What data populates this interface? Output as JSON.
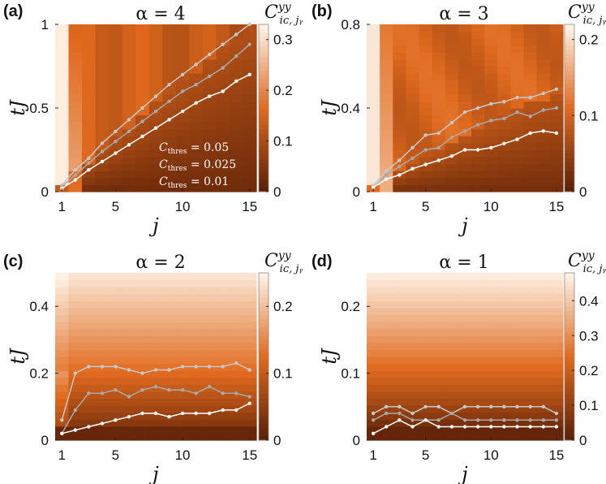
{
  "colors": {
    "low": "#5a1f06",
    "mid": "#e06a1e",
    "high": "#fff5ea",
    "line_light": "#c8c8c8",
    "line_mid": "#a8a8a8",
    "line_dark": "#ffffff"
  },
  "chart_data": [
    {
      "type": "heatmap",
      "panel_label": "(a)",
      "title": "α = 4",
      "xlabel": "j",
      "ylabel": "tJ",
      "colorbar_label": "C^{yy}_{i_c, j_y}",
      "xlim": [
        1,
        15
      ],
      "ylim": [
        0,
        1
      ],
      "xticks": [
        1,
        5,
        10,
        15
      ],
      "yticks": [
        0,
        0.5,
        1
      ],
      "ytick_labels": [
        "0",
        "0.5",
        "1"
      ],
      "cbar_range": [
        0,
        0.33
      ],
      "cbar_ticks": [
        0,
        0.1,
        0.2,
        0.3
      ],
      "cbar_tick_labels": [
        "0",
        "0.1",
        "0.2",
        "0.3"
      ],
      "legend": [
        "C_thres = 0.05",
        "C_thres = 0.025",
        "C_thres = 0.01"
      ],
      "series": [
        {
          "name": "C_thres = 0.05",
          "x": [
            1,
            2,
            3,
            4,
            5,
            6,
            7,
            8,
            9,
            10,
            11,
            12,
            13,
            14,
            15
          ],
          "y": [
            0.04,
            0.13,
            0.2,
            0.29,
            0.36,
            0.43,
            0.5,
            0.57,
            0.64,
            0.7,
            0.76,
            0.82,
            0.88,
            0.94,
            1.0
          ]
        },
        {
          "name": "C_thres = 0.025",
          "x": [
            1,
            2,
            3,
            4,
            5,
            6,
            7,
            8,
            9,
            10,
            11,
            12,
            13,
            14,
            15
          ],
          "y": [
            0.03,
            0.1,
            0.17,
            0.24,
            0.3,
            0.36,
            0.42,
            0.48,
            0.54,
            0.6,
            0.64,
            0.69,
            0.74,
            0.81,
            0.88
          ]
        },
        {
          "name": "C_thres = 0.01",
          "x": [
            1,
            2,
            3,
            4,
            5,
            6,
            7,
            8,
            9,
            10,
            11,
            12,
            13,
            14,
            15
          ],
          "y": [
            0.02,
            0.07,
            0.13,
            0.18,
            0.23,
            0.28,
            0.33,
            0.38,
            0.43,
            0.48,
            0.53,
            0.57,
            0.6,
            0.66,
            0.7
          ]
        }
      ]
    },
    {
      "type": "heatmap",
      "panel_label": "(b)",
      "title": "α = 3",
      "xlabel": "j",
      "ylabel": "tJ",
      "colorbar_label": "C^{yy}_{i_c, j_y}",
      "xlim": [
        1,
        15
      ],
      "ylim": [
        0,
        0.8
      ],
      "xticks": [
        1,
        5,
        10,
        15
      ],
      "yticks": [
        0,
        0.4,
        0.8
      ],
      "ytick_labels": [
        "0",
        "0.4",
        "0.8"
      ],
      "cbar_range": [
        0,
        0.22
      ],
      "cbar_ticks": [
        0,
        0.1,
        0.2
      ],
      "cbar_tick_labels": [
        "0",
        "0.1",
        "0.2"
      ],
      "series": [
        {
          "name": "C_thres = 0.05",
          "x": [
            1,
            2,
            3,
            4,
            5,
            6,
            7,
            8,
            9,
            10,
            11,
            12,
            13,
            14,
            15
          ],
          "y": [
            0.03,
            0.1,
            0.15,
            0.21,
            0.27,
            0.28,
            0.33,
            0.38,
            0.4,
            0.42,
            0.43,
            0.45,
            0.45,
            0.47,
            0.49
          ]
        },
        {
          "name": "C_thres = 0.025",
          "x": [
            1,
            2,
            3,
            4,
            5,
            6,
            7,
            8,
            9,
            10,
            11,
            12,
            13,
            14,
            15
          ],
          "y": [
            0.02,
            0.08,
            0.12,
            0.16,
            0.2,
            0.21,
            0.26,
            0.29,
            0.32,
            0.34,
            0.35,
            0.38,
            0.36,
            0.39,
            0.4
          ]
        },
        {
          "name": "C_thres = 0.01",
          "x": [
            1,
            2,
            3,
            4,
            5,
            6,
            7,
            8,
            9,
            10,
            11,
            12,
            13,
            14,
            15
          ],
          "y": [
            0.02,
            0.06,
            0.08,
            0.11,
            0.13,
            0.15,
            0.17,
            0.2,
            0.2,
            0.21,
            0.23,
            0.25,
            0.28,
            0.29,
            0.28
          ]
        }
      ]
    },
    {
      "type": "heatmap",
      "panel_label": "(c)",
      "title": "α = 2",
      "xlabel": "j",
      "ylabel": "tJ",
      "colorbar_label": "C^{yy}_{i_c, j_y}",
      "xlim": [
        1,
        15
      ],
      "ylim": [
        0,
        0.5
      ],
      "xticks": [
        1,
        5,
        10,
        15
      ],
      "yticks": [
        0,
        0.2,
        0.4
      ],
      "ytick_labels": [
        "0",
        "0.2",
        "0.4"
      ],
      "cbar_range": [
        0,
        0.25
      ],
      "cbar_ticks": [
        0,
        0.1,
        0.2
      ],
      "cbar_tick_labels": [
        "0",
        "0.1",
        "0.2"
      ],
      "series": [
        {
          "name": "C_thres = 0.05",
          "x": [
            1,
            2,
            3,
            4,
            5,
            6,
            7,
            8,
            9,
            10,
            11,
            12,
            13,
            14,
            15
          ],
          "y": [
            0.06,
            0.2,
            0.22,
            0.22,
            0.22,
            0.21,
            0.2,
            0.21,
            0.21,
            0.22,
            0.22,
            0.22,
            0.22,
            0.23,
            0.21
          ]
        },
        {
          "name": "C_thres = 0.025",
          "x": [
            1,
            2,
            3,
            4,
            5,
            6,
            7,
            8,
            9,
            10,
            11,
            12,
            13,
            14,
            15
          ],
          "y": [
            0.02,
            0.09,
            0.14,
            0.14,
            0.15,
            0.13,
            0.15,
            0.16,
            0.15,
            0.15,
            0.14,
            0.16,
            0.14,
            0.14,
            0.13
          ]
        },
        {
          "name": "C_thres = 0.01",
          "x": [
            1,
            2,
            3,
            4,
            5,
            6,
            7,
            8,
            9,
            10,
            11,
            12,
            13,
            14,
            15
          ],
          "y": [
            0.02,
            0.03,
            0.04,
            0.05,
            0.06,
            0.07,
            0.08,
            0.08,
            0.07,
            0.08,
            0.08,
            0.08,
            0.09,
            0.09,
            0.11
          ]
        }
      ]
    },
    {
      "type": "heatmap",
      "panel_label": "(d)",
      "title": "α = 1",
      "xlabel": "j",
      "ylabel": "tJ",
      "colorbar_label": "C^{yy}_{i_c, j_y}",
      "xlim": [
        1,
        15
      ],
      "ylim": [
        0,
        0.25
      ],
      "xticks": [
        1,
        5,
        10,
        15
      ],
      "yticks": [
        0,
        0.1,
        0.2
      ],
      "ytick_labels": [
        "0",
        "0.1",
        "0.2"
      ],
      "cbar_range": [
        0,
        0.48
      ],
      "cbar_ticks": [
        0,
        0.1,
        0.2,
        0.3,
        0.4
      ],
      "cbar_tick_labels": [
        "0",
        "0.1",
        "0.2",
        "0.3",
        "0.4"
      ],
      "series": [
        {
          "name": "C_thres = 0.05",
          "x": [
            1,
            2,
            3,
            4,
            5,
            6,
            7,
            8,
            9,
            10,
            11,
            12,
            13,
            14,
            15
          ],
          "y": [
            0.04,
            0.05,
            0.05,
            0.04,
            0.05,
            0.05,
            0.04,
            0.05,
            0.05,
            0.05,
            0.05,
            0.05,
            0.05,
            0.05,
            0.04
          ]
        },
        {
          "name": "C_thres = 0.025",
          "x": [
            1,
            2,
            3,
            4,
            5,
            6,
            7,
            8,
            9,
            10,
            11,
            12,
            13,
            14,
            15
          ],
          "y": [
            0.03,
            0.04,
            0.04,
            0.03,
            0.03,
            0.03,
            0.04,
            0.03,
            0.03,
            0.03,
            0.03,
            0.03,
            0.03,
            0.03,
            0.03
          ]
        },
        {
          "name": "C_thres = 0.01",
          "x": [
            1,
            2,
            3,
            4,
            5,
            6,
            7,
            8,
            9,
            10,
            11,
            12,
            13,
            14,
            15
          ],
          "y": [
            0.01,
            0.02,
            0.03,
            0.02,
            0.03,
            0.02,
            0.02,
            0.02,
            0.02,
            0.02,
            0.02,
            0.02,
            0.02,
            0.02,
            0.02
          ]
        }
      ]
    }
  ]
}
